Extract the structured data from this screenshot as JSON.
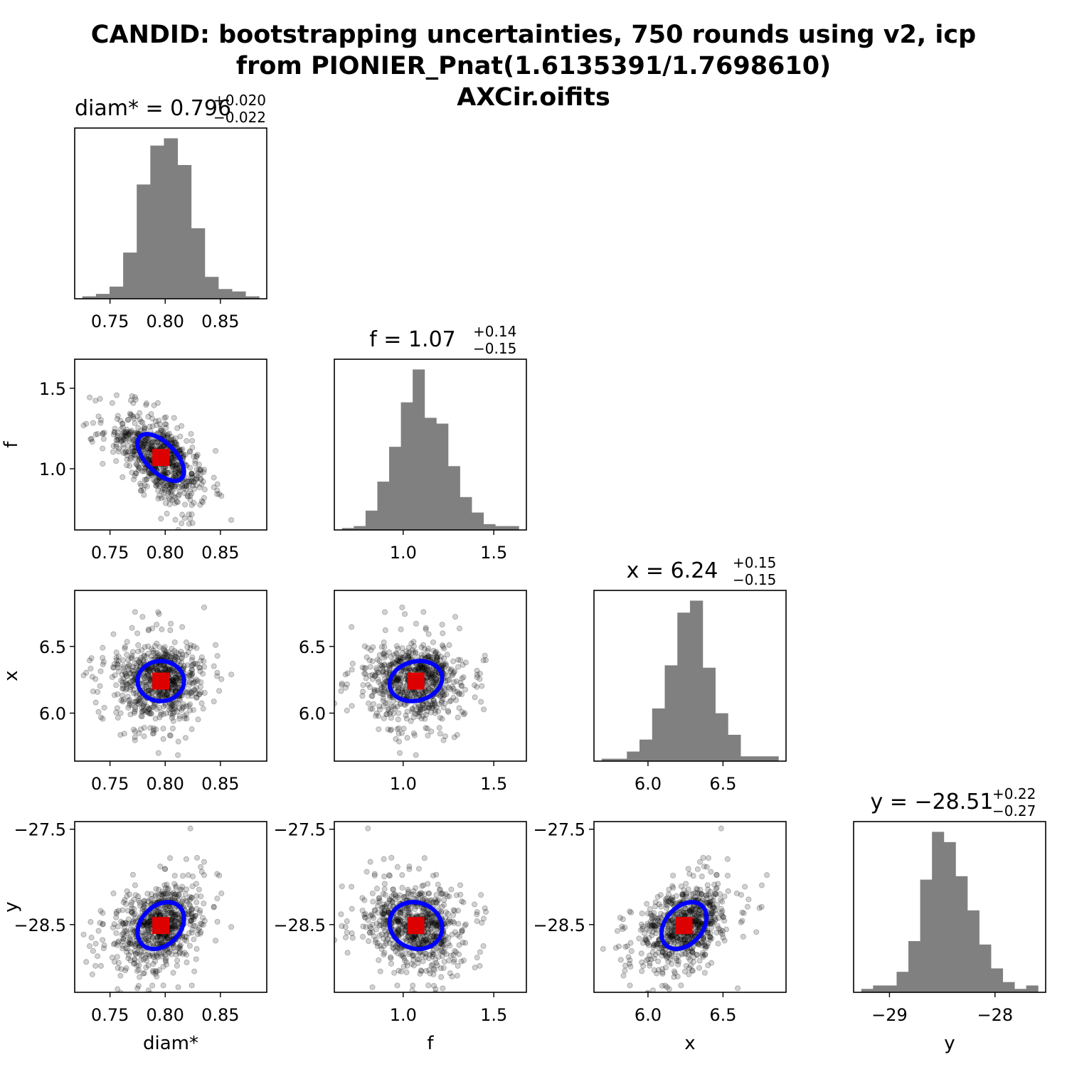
{
  "chart_data": {
    "type": "corner",
    "title": [
      "CANDID: bootstrapping uncertainties, 750 rounds using v2, icp",
      "from PIONIER_Pnat(1.6135391/1.7698610)",
      "AXCir.oifits"
    ],
    "parameters": [
      {
        "name": "diam*",
        "value": "0.796",
        "plus": "+0.020",
        "minus": "−0.022",
        "best": 0.796,
        "sigma_plus": 0.02,
        "sigma_minus": 0.022,
        "range": [
          0.718,
          0.892
        ],
        "ticks": [
          0.75,
          0.8,
          0.85
        ],
        "tick_labels": [
          "0.75",
          "0.80",
          "0.85"
        ],
        "label": "diam*",
        "hist_counts": [
          1,
          2,
          5,
          19,
          47,
          63,
          66,
          55,
          29,
          9,
          4,
          3,
          1
        ]
      },
      {
        "name": "f",
        "value": "1.07",
        "plus": "+0.14",
        "minus": "−0.15",
        "best": 1.07,
        "sigma_plus": 0.14,
        "sigma_minus": 0.15,
        "range": [
          0.62,
          1.68
        ],
        "ticks": [
          1.0,
          1.5
        ],
        "tick_labels": [
          "1.0",
          "1.5"
        ],
        "label": "f",
        "hist_counts": [
          1,
          2,
          10,
          25,
          43,
          66,
          83,
          58,
          55,
          33,
          17,
          9,
          3,
          2,
          2
        ]
      },
      {
        "name": "x",
        "value": "6.24",
        "plus": "+0.15",
        "minus": "−0.15",
        "best": 6.24,
        "sigma_plus": 0.15,
        "sigma_minus": 0.15,
        "range": [
          5.64,
          6.92
        ],
        "ticks": [
          6.0,
          6.5
        ],
        "tick_labels": [
          "6.0",
          "6.5"
        ],
        "label": "x",
        "hist_counts": [
          1,
          1,
          4,
          9,
          22,
          40,
          62,
          67,
          39,
          20,
          11,
          2,
          2,
          2
        ]
      },
      {
        "name": "y",
        "value": "−28.51",
        "plus": "+0.22",
        "minus": "−0.27",
        "best": -28.51,
        "sigma_plus": 0.22,
        "sigma_minus": 0.27,
        "range": [
          -29.34,
          -27.52
        ],
        "ticks": [
          -29,
          -28
        ],
        "tick_labels": [
          "−29",
          "−28"
        ],
        "label": "y",
        "hist_counts": [
          1,
          2,
          2,
          6,
          15,
          33,
          47,
          44,
          34,
          24,
          14,
          7,
          3,
          1,
          2
        ]
      }
    ],
    "scatter_ticks": {
      "f": {
        "values": [
          1.0,
          1.5
        ],
        "labels": [
          "1.0",
          "1.5"
        ],
        "range": [
          0.62,
          1.68
        ]
      },
      "x": {
        "values": [
          6.0,
          6.5
        ],
        "labels": [
          "6.0",
          "6.5"
        ],
        "range": [
          5.64,
          6.92
        ]
      },
      "y": {
        "values": [
          -28.5,
          -27.5
        ],
        "labels": [
          "−28.5",
          "−27.5"
        ],
        "range": [
          -29.21,
          -27.42
        ]
      }
    },
    "correlations": {
      "diam*|f": -0.6,
      "diam*|x": 0.0,
      "f|x": 0.15,
      "diam*|y": 0.3,
      "f|y": -0.1,
      "x|y": 0.35
    },
    "n_points": 750,
    "colors": {
      "hist": "#808080",
      "points": "#000000",
      "ellipse": "#0000ff",
      "best": "#dd0000"
    }
  }
}
